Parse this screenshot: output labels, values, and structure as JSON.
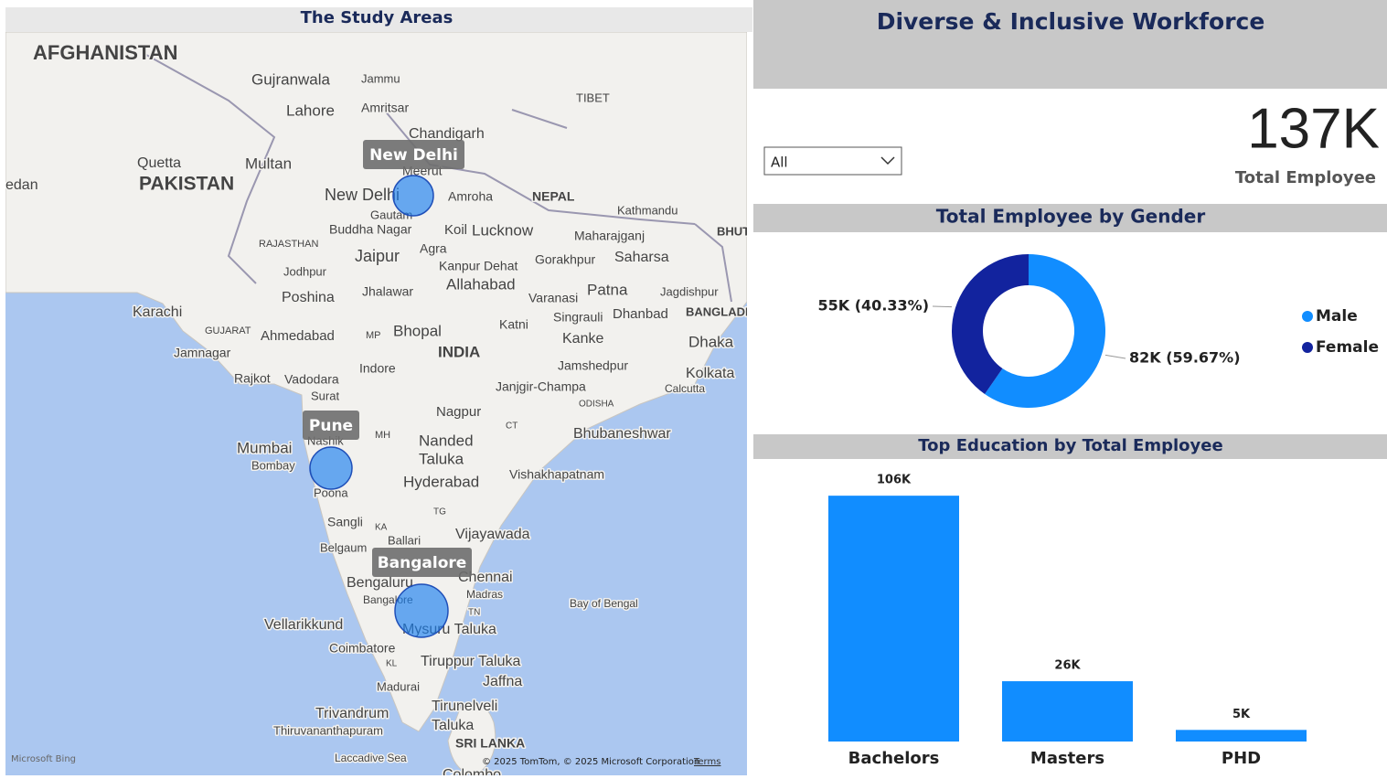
{
  "map": {
    "title": "The Study Areas",
    "labels": [
      "AFGHANISTAN",
      "Gujranwala",
      "Jammu",
      "Lahore",
      "Amritsar",
      "TIBET",
      "Chandigarh",
      "Quetta",
      "Multan",
      "PAKISTAN",
      "edan",
      "New Delhi",
      "Meerut",
      "Amroha",
      "NEPAL",
      "Kathmandu",
      "Buddha Nagar",
      "Gautam",
      "Koil",
      "Lucknow",
      "Maharajganj",
      "Gorakhpur",
      "Saharsa",
      "BHUT",
      "RAJASTHAN",
      "Jaipur",
      "Agra",
      "Kanpur Dehat",
      "Jodhpur",
      "Allahabad",
      "Poshina",
      "Jhalawar",
      "Varanasi",
      "Patna",
      "Jagdishpur",
      "Karachi",
      "Singrauli",
      "Dhanbad",
      "BANGLADE",
      "GUJARAT",
      "Ahmedabad",
      "MP",
      "Bhopal",
      "Katni",
      "Kanke",
      "Dhaka",
      "INDIA",
      "Jamnagar",
      "Jamshedpur",
      "Rajkot",
      "Vadodara",
      "Indore",
      "Kolkata",
      "Janjgir-Champa",
      "Calcutta",
      "Surat",
      "ODISHA",
      "Nagpur",
      "CT",
      "Bhubaneshwar",
      "MH",
      "Nanded",
      "Mumbai",
      "Nashik",
      "Taluka",
      "Bombay",
      "Hyderabad",
      "Vishakhapatnam",
      "Poona",
      "TG",
      "Sangli",
      "KA",
      "Ballari",
      "Vijayawada",
      "Belgaum",
      "Bengaluru",
      "Chennai",
      "Bangalore",
      "Madras",
      "Bay of Bengal",
      "Vellarikkund",
      "TN",
      "Mysuru Taluka",
      "Coimbatore",
      "Tiruppur Taluka",
      "KL",
      "Jaffna",
      "Madurai",
      "Tirunelveli",
      "Trivandrum",
      "Thiruvananthapuram",
      "Taluka",
      "SRI LANKA",
      "Laccadive Sea",
      "Colombo"
    ],
    "locations": [
      "New Delhi",
      "Pune",
      "Bangalore"
    ],
    "logo": "Microsoft Bing",
    "attribution": "© 2025 TomTom, © 2025 Microsoft Corporation",
    "terms": "Terms"
  },
  "header": {
    "title": "Diverse & Inclusive Workforce"
  },
  "slicer": {
    "value": "All"
  },
  "kpi": {
    "value": "137K",
    "label": "Total Employee"
  },
  "chart_data": [
    {
      "type": "donut",
      "title": "Total Employee by Gender",
      "categories": [
        "Male",
        "Female"
      ],
      "values": [
        59.67,
        40.33
      ],
      "value_labels": [
        "82K (59.67%)",
        "55K (40.33%)"
      ],
      "colors": [
        "#118dff",
        "#12239e"
      ],
      "legend": "right"
    },
    {
      "type": "bar",
      "title": "Top Education by Total Employee",
      "categories": [
        "Bachelors",
        "Masters",
        "PHD"
      ],
      "values": [
        106000,
        26000,
        5000
      ],
      "value_labels": [
        "106K",
        "26K",
        "5K"
      ],
      "color": "#118dff",
      "ylim": [
        0,
        110000
      ]
    }
  ]
}
